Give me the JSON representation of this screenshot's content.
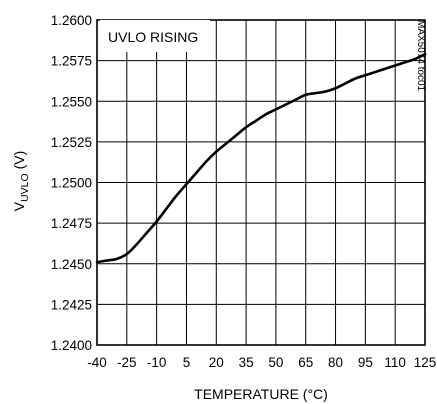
{
  "chart_data": {
    "type": "line",
    "title": "",
    "xlabel": "TEMPERATURE (°C)",
    "ylabel": "V",
    "ylabel_subscript": "UVLO",
    "ylabel_suffix": " (V)",
    "xlim": [
      -40,
      125
    ],
    "ylim": [
      1.24,
      1.26
    ],
    "xticks": [
      -40,
      -25,
      -10,
      5,
      20,
      35,
      50,
      65,
      80,
      95,
      110,
      125
    ],
    "xtick_labels": [
      "-40",
      "-25",
      "-10",
      "5",
      "20",
      "35",
      "50",
      "65",
      "80",
      "95",
      "110",
      "125"
    ],
    "yticks": [
      1.24,
      1.2425,
      1.245,
      1.2475,
      1.25,
      1.2525,
      1.255,
      1.2575,
      1.26
    ],
    "ytick_labels": [
      "1.2400",
      "1.2425",
      "1.2450",
      "1.2475",
      "1.2500",
      "1.2525",
      "1.2550",
      "1.2575",
      "1.2600"
    ],
    "grid": true,
    "annotation": "UVLO RISING",
    "figure_code": "MAX5074 toc01",
    "line_color": "#000000",
    "series": [
      {
        "x": [
          -40,
          -35,
          -30,
          -25,
          -20,
          -15,
          -10,
          -5,
          0,
          5,
          10,
          15,
          20,
          25,
          30,
          35,
          40,
          45,
          50,
          55,
          60,
          65,
          70,
          75,
          80,
          85,
          90,
          95,
          100,
          105,
          110,
          115,
          120,
          125
        ],
        "y": [
          1.2451,
          1.2452,
          1.2453,
          1.2456,
          1.2462,
          1.2469,
          1.2476,
          1.2484,
          1.2492,
          1.2499,
          1.2506,
          1.2513,
          1.2519,
          1.2524,
          1.2529,
          1.2534,
          1.2538,
          1.2542,
          1.2545,
          1.2548,
          1.2551,
          1.2554,
          1.2555,
          1.2556,
          1.2558,
          1.2561,
          1.2564,
          1.2566,
          1.2568,
          1.257,
          1.2572,
          1.2574,
          1.2576,
          1.2579
        ]
      }
    ]
  }
}
